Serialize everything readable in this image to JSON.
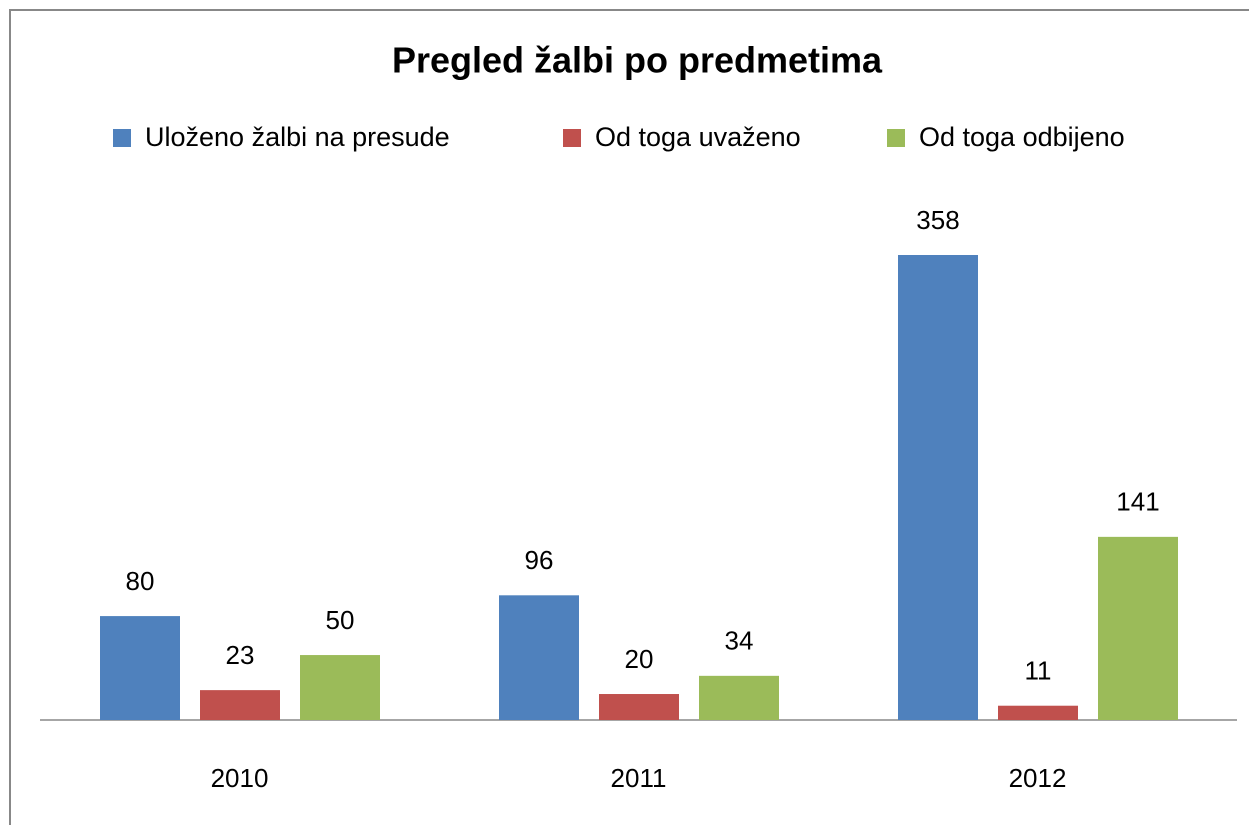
{
  "chart_data": {
    "type": "bar",
    "title": "Pregled žalbi po predmetima",
    "categories": [
      "2010",
      "2011",
      "2012"
    ],
    "series": [
      {
        "name": "Uloženo žalbi na presude",
        "color": "#4f81bd",
        "values": [
          80,
          96,
          358
        ]
      },
      {
        "name": "Od toga uvaženo",
        "color": "#c0504d",
        "values": [
          23,
          20,
          11
        ]
      },
      {
        "name": "Od toga odbijeno",
        "color": "#9bbb59",
        "values": [
          50,
          34,
          141
        ]
      }
    ],
    "legend": "top"
  }
}
